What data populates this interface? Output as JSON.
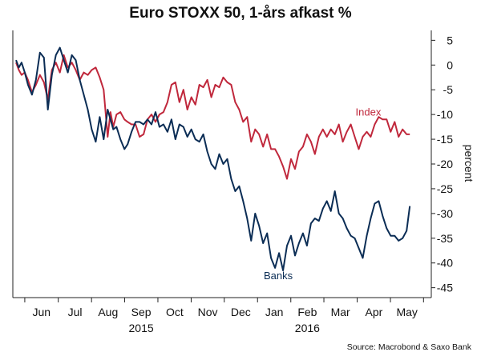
{
  "chart_data": {
    "type": "line",
    "title": "Euro STOXX 50, 1-års afkast %",
    "ylabel": "percent",
    "source": "Source: Macrobond & Saxo Bank",
    "ylim": [
      -47,
      7
    ],
    "y_ticks": [
      5,
      0,
      -5,
      -10,
      -15,
      -20,
      -25,
      -30,
      -35,
      -40,
      -45
    ],
    "xlim": [
      2015.38,
      2016.43
    ],
    "month_ticks": [
      {
        "label": "Jun",
        "x": 2015.452
      },
      {
        "label": "Jul",
        "x": 2015.536
      },
      {
        "label": "Aug",
        "x": 2015.619
      },
      {
        "label": "Sep",
        "x": 2015.702
      },
      {
        "label": "Oct",
        "x": 2015.786
      },
      {
        "label": "Nov",
        "x": 2015.869
      },
      {
        "label": "Dec",
        "x": 2015.952
      },
      {
        "label": "Jan",
        "x": 2016.036
      },
      {
        "label": "Feb",
        "x": 2016.119
      },
      {
        "label": "Mar",
        "x": 2016.202
      },
      {
        "label": "Apr",
        "x": 2016.286
      },
      {
        "label": "May",
        "x": 2016.369
      }
    ],
    "year_labels": [
      {
        "label": "2015",
        "x": 2015.702
      },
      {
        "label": "2016",
        "x": 2016.119
      }
    ],
    "grid": false,
    "series": [
      {
        "name": "Index",
        "color": "#c0283c",
        "x": [
          2015.388,
          2015.395,
          2015.402,
          2015.41,
          2015.418,
          2015.428,
          2015.438,
          2015.448,
          2015.458,
          2015.468,
          2015.478,
          2015.488,
          2015.498,
          2015.508,
          2015.518,
          2015.528,
          2015.538,
          2015.548,
          2015.558,
          2015.568,
          2015.578,
          2015.588,
          2015.598,
          2015.608,
          2015.618,
          2015.625,
          2015.632,
          2015.64,
          2015.65,
          2015.66,
          2015.668,
          2015.678,
          2015.688,
          2015.698,
          2015.708,
          2015.718,
          2015.728,
          2015.738,
          2015.748,
          2015.758,
          2015.768,
          2015.778,
          2015.788,
          2015.798,
          2015.808,
          2015.818,
          2015.828,
          2015.838,
          2015.848,
          2015.858,
          2015.868,
          2015.878,
          2015.888,
          2015.898,
          2015.908,
          2015.918,
          2015.928,
          2015.938,
          2015.948,
          2015.958,
          2015.968,
          2015.978,
          2015.988,
          2015.998,
          2016.008,
          2016.018,
          2016.028,
          2016.038,
          2016.048,
          2016.058,
          2016.068,
          2016.078,
          2016.088,
          2016.098,
          2016.108,
          2016.118,
          2016.128,
          2016.138,
          2016.148,
          2016.158,
          2016.168,
          2016.178,
          2016.188,
          2016.198,
          2016.208,
          2016.218,
          2016.228,
          2016.238,
          2016.248,
          2016.258,
          2016.268,
          2016.278,
          2016.288,
          2016.298,
          2016.308,
          2016.318,
          2016.328,
          2016.338,
          2016.348,
          2016.358,
          2016.368,
          2016.376
        ],
        "values": [
          0.5,
          -1.0,
          -2.0,
          -1.5,
          -3.0,
          -5.5,
          -4.0,
          -2.0,
          -3.5,
          -7.0,
          -1.0,
          0.5,
          -1.5,
          2.0,
          -0.5,
          0.5,
          -1.0,
          -3.0,
          -1.5,
          -2.0,
          -1.0,
          -0.5,
          -2.5,
          -5.0,
          -14.5,
          -9.5,
          -12.5,
          -10.0,
          -9.5,
          -11.0,
          -11.5,
          -12.0,
          -12.0,
          -14.5,
          -14.0,
          -11.0,
          -10.0,
          -11.5,
          -10.0,
          -9.5,
          -7.5,
          -4.0,
          -3.5,
          -7.5,
          -5.0,
          -9.0,
          -6.5,
          -8.0,
          -4.0,
          -4.5,
          -3.0,
          -6.5,
          -4.0,
          -4.5,
          -2.5,
          -3.5,
          -4.0,
          -7.5,
          -9.0,
          -11.5,
          -10.5,
          -15.5,
          -13.0,
          -14.0,
          -16.5,
          -14.0,
          -17.0,
          -17.0,
          -18.5,
          -20.5,
          -23.0,
          -19.0,
          -21.0,
          -17.5,
          -16.5,
          -14.0,
          -15.5,
          -18.0,
          -14.5,
          -13.0,
          -14.5,
          -13.0,
          -14.0,
          -12.0,
          -15.5,
          -13.5,
          -12.0,
          -14.5,
          -17.0,
          -14.5,
          -13.5,
          -14.5,
          -12.0,
          -10.5,
          -11.0,
          -11.0,
          -13.5,
          -11.5,
          -14.5,
          -13.0,
          -14.0,
          -14.0
        ]
      },
      {
        "name": "Banks",
        "color": "#0b2d55",
        "x": [
          2015.388,
          2015.395,
          2015.402,
          2015.41,
          2015.418,
          2015.428,
          2015.438,
          2015.448,
          2015.458,
          2015.468,
          2015.478,
          2015.488,
          2015.498,
          2015.508,
          2015.518,
          2015.528,
          2015.538,
          2015.548,
          2015.558,
          2015.568,
          2015.578,
          2015.588,
          2015.598,
          2015.608,
          2015.618,
          2015.625,
          2015.632,
          2015.64,
          2015.65,
          2015.66,
          2015.668,
          2015.678,
          2015.688,
          2015.698,
          2015.708,
          2015.718,
          2015.728,
          2015.738,
          2015.748,
          2015.758,
          2015.768,
          2015.778,
          2015.788,
          2015.798,
          2015.808,
          2015.818,
          2015.828,
          2015.838,
          2015.848,
          2015.858,
          2015.868,
          2015.878,
          2015.888,
          2015.898,
          2015.908,
          2015.918,
          2015.928,
          2015.938,
          2015.948,
          2015.958,
          2015.968,
          2015.978,
          2015.988,
          2015.998,
          2016.008,
          2016.018,
          2016.028,
          2016.038,
          2016.048,
          2016.058,
          2016.068,
          2016.078,
          2016.088,
          2016.098,
          2016.108,
          2016.118,
          2016.128,
          2016.138,
          2016.148,
          2016.158,
          2016.168,
          2016.178,
          2016.188,
          2016.198,
          2016.208,
          2016.218,
          2016.228,
          2016.238,
          2016.248,
          2016.258,
          2016.268,
          2016.278,
          2016.288,
          2016.298,
          2016.308,
          2016.318,
          2016.328,
          2016.338,
          2016.348,
          2016.358,
          2016.368,
          2016.376
        ],
        "values": [
          1.0,
          -0.5,
          0.5,
          -1.5,
          -4.0,
          -6.0,
          -3.0,
          2.5,
          1.5,
          -9.0,
          -2.0,
          2.0,
          3.5,
          1.0,
          -1.5,
          2.0,
          1.0,
          -3.0,
          -6.0,
          -9.0,
          -13.0,
          -15.5,
          -10.5,
          -15.0,
          -9.0,
          -11.0,
          -13.0,
          -12.5,
          -15.0,
          -17.0,
          -16.0,
          -13.5,
          -11.5,
          -11.5,
          -12.0,
          -11.0,
          -12.0,
          -9.5,
          -12.5,
          -12.0,
          -13.5,
          -11.0,
          -15.0,
          -12.0,
          -12.5,
          -14.5,
          -13.0,
          -15.0,
          -15.5,
          -14.0,
          -17.5,
          -20.0,
          -21.0,
          -18.0,
          -20.0,
          -19.0,
          -23.0,
          -25.5,
          -24.5,
          -27.5,
          -31.0,
          -35.5,
          -30.0,
          -32.5,
          -36.0,
          -34.0,
          -39.0,
          -41.0,
          -38.0,
          -41.5,
          -36.5,
          -34.5,
          -38.5,
          -36.0,
          -34.0,
          -36.5,
          -32.0,
          -31.0,
          -31.5,
          -29.0,
          -27.5,
          -29.5,
          -25.5,
          -30.0,
          -31.0,
          -33.0,
          -34.5,
          -35.0,
          -37.0,
          -39.0,
          -34.5,
          -31.0,
          -28.0,
          -27.5,
          -30.5,
          -33.0,
          -34.5,
          -34.5,
          -35.5,
          -35.0,
          -33.5,
          -28.5
        ]
      }
    ],
    "annotations": [
      {
        "text": "Index",
        "series": "Index",
        "x": 2016.272,
        "y": -10.2
      },
      {
        "text": "Banks",
        "series": "Banks",
        "x": 2016.046,
        "y": -43.3
      }
    ]
  }
}
